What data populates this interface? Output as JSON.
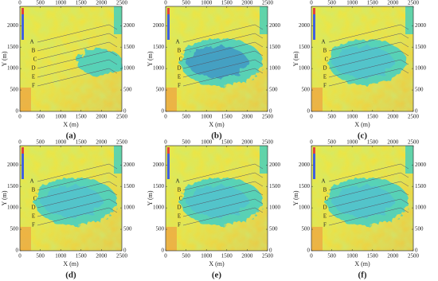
{
  "figure": {
    "x_label": "X (m)",
    "y_label": "Y (m)",
    "xlim": [
      0,
      2500
    ],
    "ylim": [
      0,
      2450
    ],
    "xticks": [
      0,
      500,
      1000,
      1500,
      2000,
      2500
    ],
    "yticks": [
      0,
      500,
      1000,
      1500,
      2000
    ],
    "line_labels": [
      "A",
      "B",
      "C",
      "D",
      "E",
      "F"
    ],
    "panels": [
      {
        "label": "(a)"
      },
      {
        "label": "(b)"
      },
      {
        "label": "(c)"
      },
      {
        "label": "(d)"
      },
      {
        "label": "(e)"
      },
      {
        "label": "(f)"
      }
    ]
  }
}
